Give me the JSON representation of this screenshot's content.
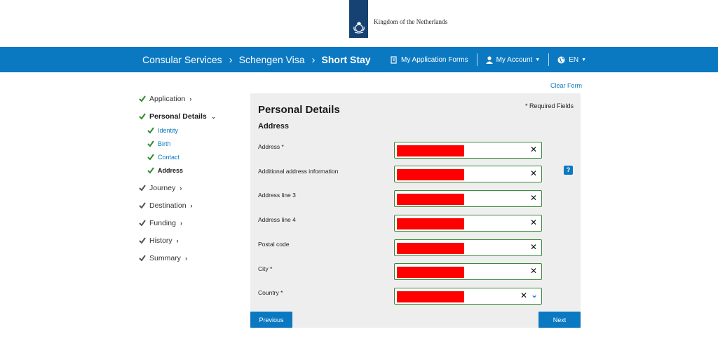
{
  "brand": {
    "name": "Kingdom of the Netherlands"
  },
  "nav": {
    "breadcrumbs": [
      "Consular Services",
      "Schengen Visa",
      "Short Stay"
    ],
    "my_forms": "My Application Forms",
    "my_account": "My Account",
    "language": "EN"
  },
  "clear_form": "Clear Form",
  "sidebar": {
    "items": [
      {
        "label": "Application",
        "state": "complete"
      },
      {
        "label": "Personal Details",
        "state": "active"
      },
      {
        "label": "Journey",
        "state": "pending"
      },
      {
        "label": "Destination",
        "state": "pending"
      },
      {
        "label": "Funding",
        "state": "pending"
      },
      {
        "label": "History",
        "state": "pending"
      },
      {
        "label": "Summary",
        "state": "pending"
      }
    ],
    "sub_items": [
      {
        "label": "Identity",
        "current": false
      },
      {
        "label": "Birth",
        "current": false
      },
      {
        "label": "Contact",
        "current": false
      },
      {
        "label": "Address",
        "current": true
      }
    ]
  },
  "form": {
    "title": "Personal Details",
    "required_note": "* Required Fields",
    "section": "Address",
    "fields": [
      {
        "label": "Address *",
        "type": "text"
      },
      {
        "label": "Additional address information",
        "type": "text",
        "help": "?"
      },
      {
        "label": "Address line 3",
        "type": "text"
      },
      {
        "label": "Address line 4",
        "type": "text"
      },
      {
        "label": "Postal code",
        "type": "text"
      },
      {
        "label": "City *",
        "type": "text"
      },
      {
        "label": "Country *",
        "type": "select"
      }
    ],
    "previous": "Previous",
    "next": "Next"
  },
  "colors": {
    "primary": "#0b79c2",
    "brand_navy": "#154273",
    "check_green": "#2e8b2e",
    "valid_border": "#3a8a3a",
    "redaction": "#ff0000"
  }
}
